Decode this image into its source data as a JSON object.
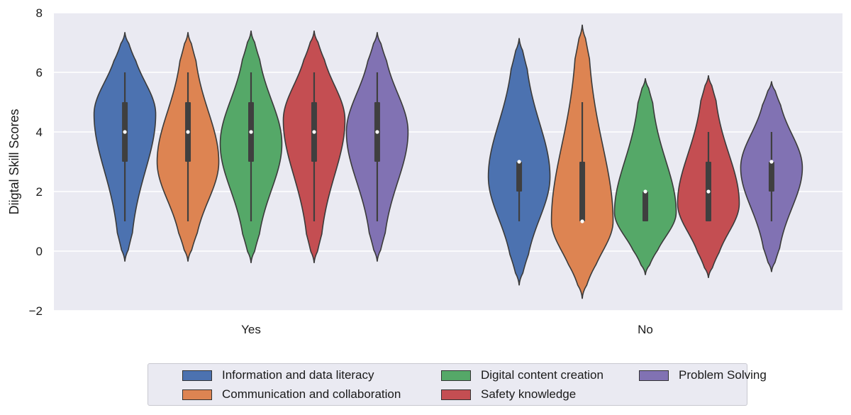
{
  "chart_data": {
    "type": "violin",
    "ylabel": "Diigtal Skill Scores",
    "xlabel": "",
    "ylim": [
      -2,
      8
    ],
    "yticks": [
      8,
      6,
      4,
      2,
      0,
      -2
    ],
    "ytick_labels": [
      "8",
      "6",
      "4",
      "2",
      "0",
      "−2"
    ],
    "grid": true,
    "legend_placement": "bottom-center",
    "categories": [
      "Yes",
      "No"
    ],
    "series": [
      {
        "name": "Information and data literacy",
        "color": "#4c72b0",
        "stats": [
          {
            "min": 1,
            "q1": 3,
            "median": 4,
            "q3": 5,
            "max": 6,
            "kde_low": -0.35,
            "kde_high": 7.35,
            "mode": 4.6
          },
          {
            "min": 1,
            "q1": 2,
            "median": 3,
            "q3": 3,
            "max": 3,
            "kde_low": -1.15,
            "kde_high": 7.15,
            "mode": 2.5
          }
        ]
      },
      {
        "name": "Communication and collaboration",
        "color": "#dd8452",
        "stats": [
          {
            "min": 1,
            "q1": 3,
            "median": 4,
            "q3": 5,
            "max": 6,
            "kde_low": -0.35,
            "kde_high": 7.35,
            "mode": 3.0
          },
          {
            "min": 1,
            "q1": 1,
            "median": 1,
            "q3": 3,
            "max": 5,
            "kde_low": -1.6,
            "kde_high": 7.6,
            "mode": 1.0
          }
        ]
      },
      {
        "name": "Digital content creation",
        "color": "#55a868",
        "stats": [
          {
            "min": 1,
            "q1": 3,
            "median": 4,
            "q3": 5,
            "max": 6,
            "kde_low": -0.4,
            "kde_high": 7.4,
            "mode": 3.6
          },
          {
            "min": 1,
            "q1": 1,
            "median": 2,
            "q3": 2,
            "max": 2,
            "kde_low": -0.8,
            "kde_high": 5.8,
            "mode": 1.3
          }
        ]
      },
      {
        "name": "Safety knowledge",
        "color": "#c44e52",
        "stats": [
          {
            "min": 1,
            "q1": 3,
            "median": 4,
            "q3": 5,
            "max": 6,
            "kde_low": -0.4,
            "kde_high": 7.4,
            "mode": 4.4
          },
          {
            "min": 1,
            "q1": 1,
            "median": 2,
            "q3": 3,
            "max": 4,
            "kde_low": -0.9,
            "kde_high": 5.9,
            "mode": 1.6
          }
        ]
      },
      {
        "name": "Problem Solving",
        "color": "#8172b3",
        "stats": [
          {
            "min": 1,
            "q1": 3,
            "median": 4,
            "q3": 5,
            "max": 6,
            "kde_low": -0.35,
            "kde_high": 7.35,
            "mode": 4.0
          },
          {
            "min": 1,
            "q1": 2,
            "median": 3,
            "q3": 3,
            "max": 4,
            "kde_low": -0.7,
            "kde_high": 5.7,
            "mode": 2.8
          }
        ]
      }
    ]
  }
}
